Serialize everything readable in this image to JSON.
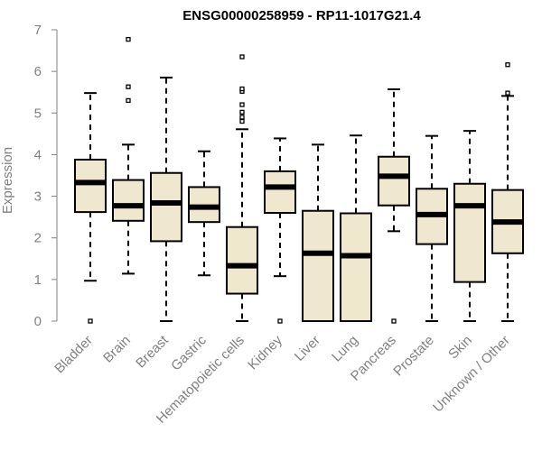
{
  "chart_data": {
    "type": "boxplot",
    "title": "ENSG00000258959 - RP11-1017G21.4",
    "ylabel": "Expression",
    "xlabel": "",
    "ylim": [
      0,
      7
    ],
    "yticks": [
      0,
      1,
      2,
      3,
      4,
      5,
      6,
      7
    ],
    "box_fill": "#efe8cf",
    "categories": [
      "Bladder",
      "Brain",
      "Breast",
      "Gastric",
      "Hematopoietic cells",
      "Kidney",
      "Liver",
      "Lung",
      "Pancreas",
      "Prostate",
      "Skin",
      "Unknown / Other"
    ],
    "boxes": [
      {
        "whisker_low": 0.97,
        "q1": 2.62,
        "median": 3.33,
        "q3": 3.88,
        "whisker_high": 5.48,
        "outliers": [
          0.0
        ]
      },
      {
        "whisker_low": 1.14,
        "q1": 2.41,
        "median": 2.77,
        "q3": 3.39,
        "whisker_high": 4.24,
        "outliers": [
          5.3,
          5.63,
          6.77
        ]
      },
      {
        "whisker_low": 0.0,
        "q1": 1.92,
        "median": 2.84,
        "q3": 3.56,
        "whisker_high": 5.85,
        "outliers": []
      },
      {
        "whisker_low": 1.1,
        "q1": 2.38,
        "median": 2.74,
        "q3": 3.22,
        "whisker_high": 4.08,
        "outliers": []
      },
      {
        "whisker_low": 0.0,
        "q1": 0.66,
        "median": 1.33,
        "q3": 2.26,
        "whisker_high": 4.61,
        "outliers": [
          4.8,
          4.9,
          5.02,
          5.2,
          5.52,
          5.58,
          6.35
        ]
      },
      {
        "whisker_low": 1.08,
        "q1": 2.6,
        "median": 3.22,
        "q3": 3.6,
        "whisker_high": 4.39,
        "outliers": [
          0.0
        ]
      },
      {
        "whisker_low": 0.0,
        "q1": 0.0,
        "median": 1.63,
        "q3": 2.65,
        "whisker_high": 4.24,
        "outliers": []
      },
      {
        "whisker_low": 0.0,
        "q1": 0.0,
        "median": 1.57,
        "q3": 2.59,
        "whisker_high": 4.46,
        "outliers": []
      },
      {
        "whisker_low": 2.16,
        "q1": 2.78,
        "median": 3.48,
        "q3": 3.95,
        "whisker_high": 5.57,
        "outliers": [
          0.0
        ]
      },
      {
        "whisker_low": 0.0,
        "q1": 1.85,
        "median": 2.56,
        "q3": 3.18,
        "whisker_high": 4.45,
        "outliers": []
      },
      {
        "whisker_low": 0.0,
        "q1": 0.94,
        "median": 2.77,
        "q3": 3.3,
        "whisker_high": 4.57,
        "outliers": []
      },
      {
        "whisker_low": 0.0,
        "q1": 1.63,
        "median": 2.38,
        "q3": 3.15,
        "whisker_high": 5.41,
        "outliers": [
          5.48,
          6.16
        ]
      }
    ]
  }
}
